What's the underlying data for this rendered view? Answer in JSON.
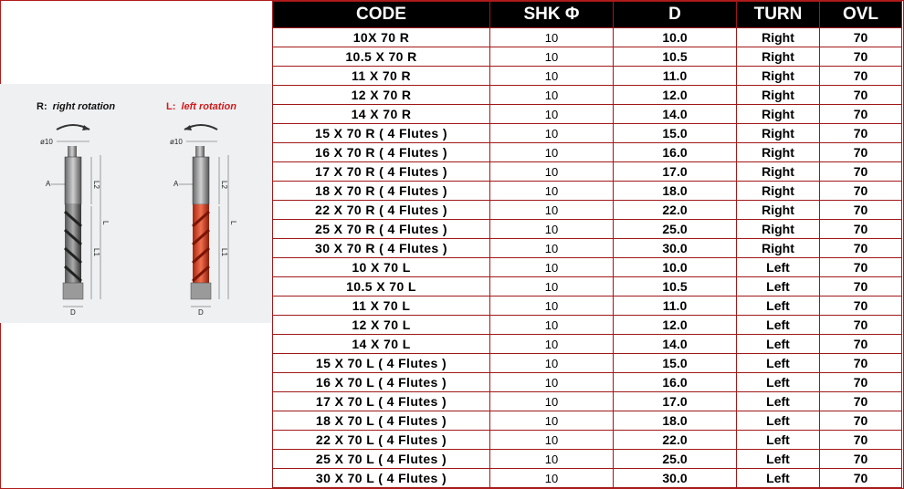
{
  "table": {
    "headers": [
      "CODE",
      "SHK Φ",
      "D",
      "TURN",
      "OVL"
    ],
    "rows": [
      {
        "code": "10X 70 R",
        "shk": "10",
        "d": "10.0",
        "turn": "Right",
        "ovl": "70"
      },
      {
        "code": "10.5 X 70 R",
        "shk": "10",
        "d": "10.5",
        "turn": "Right",
        "ovl": "70"
      },
      {
        "code": "11 X 70 R",
        "shk": "10",
        "d": "11.0",
        "turn": "Right",
        "ovl": "70"
      },
      {
        "code": "12 X 70 R",
        "shk": "10",
        "d": "12.0",
        "turn": "Right",
        "ovl": "70"
      },
      {
        "code": "14 X 70 R",
        "shk": "10",
        "d": "14.0",
        "turn": "Right",
        "ovl": "70"
      },
      {
        "code": "15 X 70 R ( 4  Flutes )",
        "shk": "10",
        "d": "15.0",
        "turn": "Right",
        "ovl": "70"
      },
      {
        "code": "16 X 70 R ( 4  Flutes )",
        "shk": "10",
        "d": "16.0",
        "turn": "Right",
        "ovl": "70"
      },
      {
        "code": "17 X 70 R ( 4  Flutes )",
        "shk": "10",
        "d": "17.0",
        "turn": "Right",
        "ovl": "70"
      },
      {
        "code": "18 X 70 R ( 4  Flutes )",
        "shk": "10",
        "d": "18.0",
        "turn": "Right",
        "ovl": "70"
      },
      {
        "code": "22 X 70 R ( 4  Flutes )",
        "shk": "10",
        "d": "22.0",
        "turn": "Right",
        "ovl": "70"
      },
      {
        "code": "25 X 70 R ( 4  Flutes )",
        "shk": "10",
        "d": "25.0",
        "turn": "Right",
        "ovl": "70"
      },
      {
        "code": "30 X 70 R ( 4  Flutes )",
        "shk": "10",
        "d": "30.0",
        "turn": "Right",
        "ovl": "70"
      },
      {
        "code": "10 X 70 L",
        "shk": "10",
        "d": "10.0",
        "turn": "Left",
        "ovl": "70"
      },
      {
        "code": "10.5 X 70 L",
        "shk": "10",
        "d": "10.5",
        "turn": "Left",
        "ovl": "70"
      },
      {
        "code": "11 X 70 L",
        "shk": "10",
        "d": "11.0",
        "turn": "Left",
        "ovl": "70"
      },
      {
        "code": "12 X 70 L",
        "shk": "10",
        "d": "12.0",
        "turn": "Left",
        "ovl": "70"
      },
      {
        "code": "14 X 70 L",
        "shk": "10",
        "d": "14.0",
        "turn": "Left",
        "ovl": "70"
      },
      {
        "code": "15 X 70 L ( 4  Flutes )",
        "shk": "10",
        "d": "15.0",
        "turn": "Left",
        "ovl": "70"
      },
      {
        "code": "16 X 70 L ( 4  Flutes )",
        "shk": "10",
        "d": "16.0",
        "turn": "Left",
        "ovl": "70"
      },
      {
        "code": "17 X 70 L ( 4  Flutes )",
        "shk": "10",
        "d": "17.0",
        "turn": "Left",
        "ovl": "70"
      },
      {
        "code": "18 X 70 L ( 4  Flutes )",
        "shk": "10",
        "d": "18.0",
        "turn": "Left",
        "ovl": "70"
      },
      {
        "code": "22 X 70 L ( 4  Flutes )",
        "shk": "10",
        "d": "22.0",
        "turn": "Left",
        "ovl": "70"
      },
      {
        "code": "25 X 70 L ( 4  Flutes )",
        "shk": "10",
        "d": "25.0",
        "turn": "Left",
        "ovl": "70"
      },
      {
        "code": "30 X 70 L ( 4  Flutes )",
        "shk": "10",
        "d": "30.0",
        "turn": "Left",
        "ovl": "70"
      }
    ]
  },
  "illustration": {
    "right": {
      "prefix": "R:",
      "caption": "right rotation"
    },
    "left": {
      "prefix": "L:",
      "caption": "left rotation"
    },
    "labels": {
      "shank": "ø10",
      "a": "A",
      "l2": "L2",
      "l": "L",
      "l1": "L1",
      "d": "D"
    }
  },
  "colors": {
    "header_bg": "#000000",
    "border": "#a01818",
    "left_drill": "#d23a1c",
    "right_drill": "#3a3a3a",
    "left_caption": "#d01a1a"
  }
}
